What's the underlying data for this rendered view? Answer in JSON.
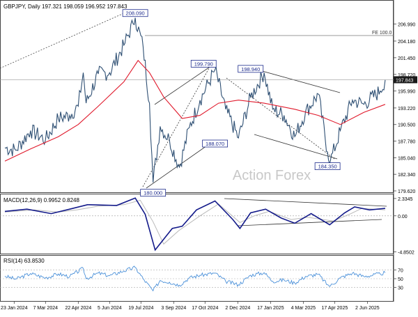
{
  "chart_data": [
    {
      "type": "line",
      "title": "GBPJPY, Daily",
      "ohlc": {
        "open": "197.321",
        "high": "198.059",
        "low": "196.952",
        "close": "197.843"
      },
      "ylim": [
        179.62,
        210.0
      ],
      "y_ticks": [
        "206.990",
        "204.180",
        "201.450",
        "198.720",
        "195.990",
        "193.220",
        "190.500",
        "187.780",
        "185.040",
        "182.340",
        "179.620"
      ],
      "last_price_label": "197.843",
      "x_ticks": [
        "23 Jan 2024",
        "7 Mar 2024",
        "22 Apr 2024",
        "5 Jun 2024",
        "19 Jul 2024",
        "3 Sep 2024",
        "17 Oct 2024",
        "2 Dec 2024",
        "17 Jan 2025",
        "4 Mar 2025",
        "17 Apr 2025",
        "2 Jun 2025"
      ],
      "price_path": [
        {
          "d": "2024-01-10",
          "v": 186.7
        },
        {
          "d": "2024-01-25",
          "v": 186.3
        },
        {
          "d": "2024-02-15",
          "v": 189.5
        },
        {
          "d": "2024-03-07",
          "v": 188.0
        },
        {
          "d": "2024-03-25",
          "v": 191.5
        },
        {
          "d": "2024-04-10",
          "v": 192.0
        },
        {
          "d": "2024-04-22",
          "v": 193.5
        },
        {
          "d": "2024-04-29",
          "v": 199.0
        },
        {
          "d": "2024-05-03",
          "v": 194.0
        },
        {
          "d": "2024-05-20",
          "v": 198.8
        },
        {
          "d": "2024-06-05",
          "v": 199.0
        },
        {
          "d": "2024-06-25",
          "v": 203.5
        },
        {
          "d": "2024-07-08",
          "v": 207.0
        },
        {
          "d": "2024-07-11",
          "v": 208.0
        },
        {
          "d": "2024-07-22",
          "v": 203.3
        },
        {
          "d": "2024-07-31",
          "v": 194.0
        },
        {
          "d": "2024-08-05",
          "v": 181.0
        },
        {
          "d": "2024-08-15",
          "v": 190.2
        },
        {
          "d": "2024-08-28",
          "v": 188.0
        },
        {
          "d": "2024-09-11",
          "v": 183.5
        },
        {
          "d": "2024-09-25",
          "v": 190.0
        },
        {
          "d": "2024-10-10",
          "v": 194.5
        },
        {
          "d": "2024-10-31",
          "v": 199.5
        },
        {
          "d": "2024-11-15",
          "v": 193.0
        },
        {
          "d": "2024-12-03",
          "v": 188.3
        },
        {
          "d": "2024-12-20",
          "v": 195.0
        },
        {
          "d": "2025-01-08",
          "v": 199.0
        },
        {
          "d": "2025-01-20",
          "v": 193.0
        },
        {
          "d": "2025-02-05",
          "v": 192.0
        },
        {
          "d": "2025-02-20",
          "v": 188.5
        },
        {
          "d": "2025-03-07",
          "v": 192.5
        },
        {
          "d": "2025-03-25",
          "v": 195.5
        },
        {
          "d": "2025-04-07",
          "v": 186.0
        },
        {
          "d": "2025-04-11",
          "v": 184.5
        },
        {
          "d": "2025-04-25",
          "v": 189.5
        },
        {
          "d": "2025-05-12",
          "v": 194.5
        },
        {
          "d": "2025-05-28",
          "v": 193.8
        },
        {
          "d": "2025-06-20",
          "v": 196.0
        },
        {
          "d": "2025-06-27",
          "v": 197.8
        }
      ],
      "moving_average": [
        {
          "d": "2024-01-10",
          "v": 184.5
        },
        {
          "d": "2024-02-15",
          "v": 186.5
        },
        {
          "d": "2024-03-25",
          "v": 188.5
        },
        {
          "d": "2024-04-22",
          "v": 190.5
        },
        {
          "d": "2024-05-20",
          "v": 193.5
        },
        {
          "d": "2024-06-25",
          "v": 197.5
        },
        {
          "d": "2024-07-15",
          "v": 201.0
        },
        {
          "d": "2024-07-31",
          "v": 199.0
        },
        {
          "d": "2024-08-20",
          "v": 195.0
        },
        {
          "d": "2024-09-15",
          "v": 191.5
        },
        {
          "d": "2024-10-10",
          "v": 192.0
        },
        {
          "d": "2024-11-05",
          "v": 194.0
        },
        {
          "d": "2024-12-03",
          "v": 194.5
        },
        {
          "d": "2025-01-08",
          "v": 194.0
        },
        {
          "d": "2025-02-20",
          "v": 193.0
        },
        {
          "d": "2025-03-25",
          "v": 192.0
        },
        {
          "d": "2025-04-25",
          "v": 190.5
        },
        {
          "d": "2025-05-28",
          "v": 192.5
        },
        {
          "d": "2025-06-27",
          "v": 193.8
        }
      ],
      "annotations": [
        {
          "text": "208.090",
          "d": "2024-07-11",
          "v": 208.09
        },
        {
          "text": "180.000",
          "d": "2024-08-05",
          "v": 180.0
        },
        {
          "text": "199.790",
          "d": "2024-10-15",
          "v": 199.79
        },
        {
          "text": "188.070",
          "d": "2024-10-31",
          "v": 188.07
        },
        {
          "text": "198.940",
          "d": "2024-12-20",
          "v": 198.94
        },
        {
          "text": "184.350",
          "d": "2025-04-07",
          "v": 184.35
        }
      ],
      "level_line": {
        "text": "FE 100.0",
        "v": 204.3
      },
      "watermark": "Action Forex"
    },
    {
      "type": "line",
      "title": "MACD(12,26,9) 0.9952 0.8248",
      "ylim": [
        -4.9,
        2.7
      ],
      "y_ticks": [
        "2.3345",
        "0.00",
        "-4.8502"
      ],
      "series": [
        {
          "values": [
            {
              "d": "2024-01-10",
              "v": 0.6
            },
            {
              "d": "2024-02-10",
              "v": 0.9
            },
            {
              "d": "2024-03-15",
              "v": 0.3
            },
            {
              "d": "2024-04-10",
              "v": 0.9
            },
            {
              "d": "2024-05-05",
              "v": 1.5
            },
            {
              "d": "2024-06-15",
              "v": 1.4
            },
            {
              "d": "2024-07-11",
              "v": 2.4
            },
            {
              "d": "2024-07-25",
              "v": 0.2
            },
            {
              "d": "2024-08-08",
              "v": -4.6
            },
            {
              "d": "2024-09-01",
              "v": -1.7
            },
            {
              "d": "2024-09-15",
              "v": -1.4
            },
            {
              "d": "2024-10-05",
              "v": 0.8
            },
            {
              "d": "2024-10-31",
              "v": 2.0
            },
            {
              "d": "2024-11-25",
              "v": -0.5
            },
            {
              "d": "2024-12-05",
              "v": -1.7
            },
            {
              "d": "2024-12-20",
              "v": 0.4
            },
            {
              "d": "2025-01-10",
              "v": 0.9
            },
            {
              "d": "2025-02-01",
              "v": -0.3
            },
            {
              "d": "2025-02-20",
              "v": -1.0
            },
            {
              "d": "2025-03-15",
              "v": 0.3
            },
            {
              "d": "2025-04-10",
              "v": -1.2
            },
            {
              "d": "2025-05-01",
              "v": 0.4
            },
            {
              "d": "2025-05-15",
              "v": 1.2
            },
            {
              "d": "2025-06-05",
              "v": 0.8
            },
            {
              "d": "2025-06-27",
              "v": 1.0
            }
          ]
        },
        {
          "values": [
            {
              "d": "2024-01-10",
              "v": 0.5
            },
            {
              "d": "2024-02-20",
              "v": 0.8
            },
            {
              "d": "2024-03-25",
              "v": 0.5
            },
            {
              "d": "2024-04-20",
              "v": 0.8
            },
            {
              "d": "2024-05-20",
              "v": 1.3
            },
            {
              "d": "2024-06-25",
              "v": 1.5
            },
            {
              "d": "2024-07-18",
              "v": 2.1
            },
            {
              "d": "2024-08-05",
              "v": -0.8
            },
            {
              "d": "2024-08-20",
              "v": -3.8
            },
            {
              "d": "2024-09-10",
              "v": -2.0
            },
            {
              "d": "2024-10-10",
              "v": 0.0
            },
            {
              "d": "2024-11-05",
              "v": 1.6
            },
            {
              "d": "2024-12-05",
              "v": -0.9
            },
            {
              "d": "2024-12-25",
              "v": 0.0
            },
            {
              "d": "2025-01-15",
              "v": 0.6
            },
            {
              "d": "2025-02-15",
              "v": -0.5
            },
            {
              "d": "2025-03-10",
              "v": -0.2
            },
            {
              "d": "2025-04-15",
              "v": -0.7
            },
            {
              "d": "2025-05-10",
              "v": 0.3
            },
            {
              "d": "2025-05-25",
              "v": 1.0
            },
            {
              "d": "2025-06-27",
              "v": 0.8
            }
          ]
        }
      ]
    },
    {
      "type": "line",
      "title": "RSI(14) 63.8530",
      "ylim": [
        0,
        100
      ],
      "y_ticks": [
        "70",
        "50",
        "30"
      ],
      "series": [
        {
          "values": [
            {
              "d": "2024-01-10",
              "v": 56
            },
            {
              "d": "2024-01-25",
              "v": 49
            },
            {
              "d": "2024-02-15",
              "v": 62
            },
            {
              "d": "2024-03-07",
              "v": 52
            },
            {
              "d": "2024-03-25",
              "v": 61
            },
            {
              "d": "2024-04-10",
              "v": 55
            },
            {
              "d": "2024-04-29",
              "v": 74
            },
            {
              "d": "2024-05-03",
              "v": 50
            },
            {
              "d": "2024-05-20",
              "v": 63
            },
            {
              "d": "2024-06-05",
              "v": 57
            },
            {
              "d": "2024-06-25",
              "v": 68
            },
            {
              "d": "2024-07-11",
              "v": 76
            },
            {
              "d": "2024-07-22",
              "v": 50
            },
            {
              "d": "2024-08-05",
              "v": 22
            },
            {
              "d": "2024-08-15",
              "v": 46
            },
            {
              "d": "2024-08-28",
              "v": 42
            },
            {
              "d": "2024-09-11",
              "v": 35
            },
            {
              "d": "2024-09-25",
              "v": 52
            },
            {
              "d": "2024-10-10",
              "v": 58
            },
            {
              "d": "2024-10-31",
              "v": 63
            },
            {
              "d": "2024-11-15",
              "v": 44
            },
            {
              "d": "2024-12-03",
              "v": 36
            },
            {
              "d": "2024-12-20",
              "v": 58
            },
            {
              "d": "2025-01-08",
              "v": 64
            },
            {
              "d": "2025-01-20",
              "v": 44
            },
            {
              "d": "2025-02-05",
              "v": 47
            },
            {
              "d": "2025-02-20",
              "v": 40
            },
            {
              "d": "2025-03-07",
              "v": 55
            },
            {
              "d": "2025-03-25",
              "v": 60
            },
            {
              "d": "2025-04-07",
              "v": 36
            },
            {
              "d": "2025-04-11",
              "v": 33
            },
            {
              "d": "2025-04-25",
              "v": 52
            },
            {
              "d": "2025-05-12",
              "v": 63
            },
            {
              "d": "2025-05-28",
              "v": 55
            },
            {
              "d": "2025-06-20",
              "v": 61
            },
            {
              "d": "2025-06-27",
              "v": 64
            }
          ]
        }
      ]
    }
  ]
}
